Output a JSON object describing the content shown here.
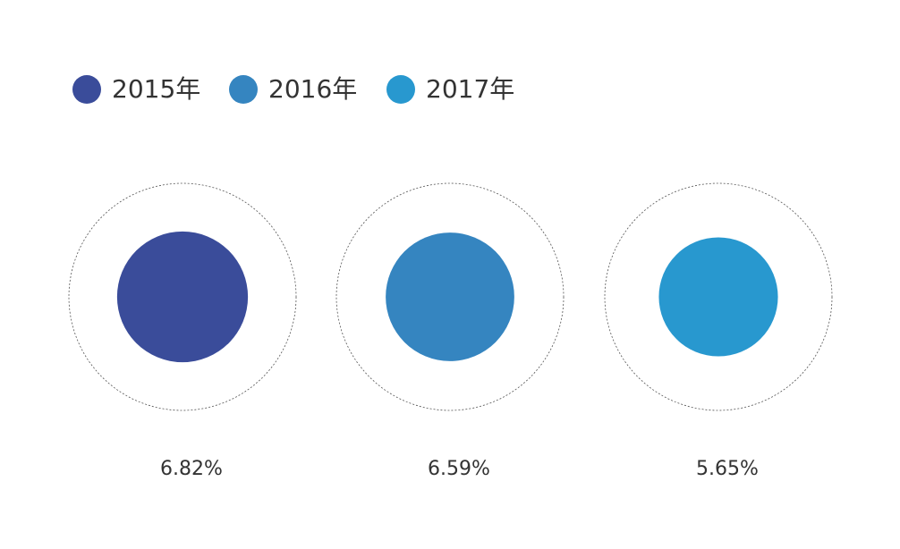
{
  "chart_data": {
    "type": "bubble",
    "categories": [
      "2015年",
      "2016年",
      "2017年"
    ],
    "values": [
      6.82,
      6.59,
      5.65
    ],
    "value_labels": [
      "6.82%",
      "6.59%",
      "5.65%"
    ],
    "colors": [
      "#3a4c9a",
      "#3585c0",
      "#2898cf"
    ]
  }
}
